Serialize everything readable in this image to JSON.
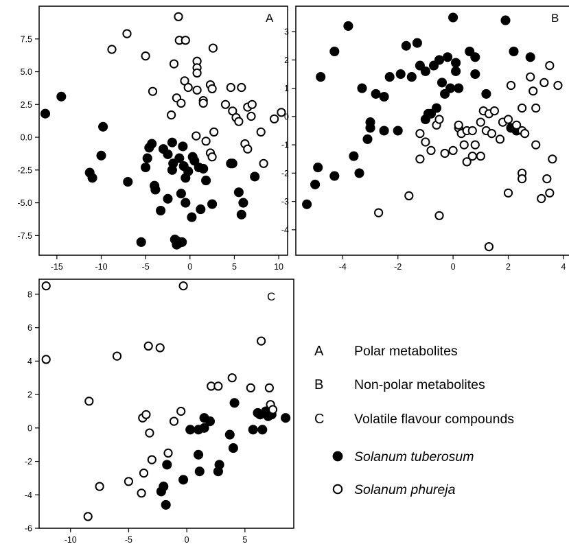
{
  "chart_data": [
    {
      "type": "scatter",
      "panel": "A",
      "xlim": [
        -17,
        11
      ],
      "ylim": [
        -9,
        10
      ],
      "xticks": [
        -15,
        -10,
        -5,
        0,
        5,
        10
      ],
      "yticks": [
        -7.5,
        -5.0,
        -2.5,
        0.0,
        2.5,
        5.0,
        7.5
      ],
      "grid": false,
      "series": [
        {
          "name": "Solanum tuberosum",
          "marker": "filled",
          "points": [
            [
              -16.3,
              1.8
            ],
            [
              -14.5,
              3.1
            ],
            [
              -11.3,
              -2.7
            ],
            [
              -11,
              -3.1
            ],
            [
              -10,
              -1.4
            ],
            [
              -9.8,
              0.8
            ],
            [
              -7,
              -3.4
            ],
            [
              -5,
              -2.3
            ],
            [
              -4.8,
              -1.6
            ],
            [
              -4.6,
              -0.8
            ],
            [
              -4.3,
              -0.5
            ],
            [
              -4,
              -3.7
            ],
            [
              -3.9,
              -4
            ],
            [
              -3.3,
              -5.6
            ],
            [
              -3,
              -0.9
            ],
            [
              -2.5,
              -4.7
            ],
            [
              -2.5,
              -1.3
            ],
            [
              -2,
              -0.4
            ],
            [
              -1.9,
              -2
            ],
            [
              -1.7,
              -7.8
            ],
            [
              -1.5,
              -7.9
            ],
            [
              -1.2,
              -1.6
            ],
            [
              -1,
              -4.3
            ],
            [
              -0.8,
              -0.7
            ],
            [
              -0.7,
              -2.2
            ],
            [
              -0.5,
              -3.1
            ],
            [
              -0.2,
              -2.6
            ],
            [
              0.2,
              -6.1
            ],
            [
              0.5,
              -1.8
            ],
            [
              1,
              -2.3
            ],
            [
              1.2,
              -5.5
            ],
            [
              1.5,
              -2.4
            ],
            [
              1.8,
              -3.3
            ],
            [
              2.5,
              -5.1
            ],
            [
              4.6,
              -2
            ],
            [
              4.8,
              -2
            ],
            [
              5.5,
              -4.2
            ],
            [
              5.8,
              -5.9
            ],
            [
              6,
              -5
            ],
            [
              7.3,
              -3
            ],
            [
              -5.5,
              -8
            ],
            [
              -1.5,
              -8.2
            ],
            [
              -1.3,
              -8.1
            ],
            [
              -0.9,
              -8
            ],
            [
              -2,
              -2.5
            ],
            [
              -0.5,
              -5
            ],
            [
              0.3,
              -1.5
            ]
          ]
        },
        {
          "name": "Solanum phureja",
          "marker": "open",
          "points": [
            [
              -1.3,
              9.2
            ],
            [
              -7.1,
              7.9
            ],
            [
              -8.8,
              6.7
            ],
            [
              -5,
              6.2
            ],
            [
              -1.2,
              7.4
            ],
            [
              -0.5,
              7.4
            ],
            [
              2.6,
              6.8
            ],
            [
              0.8,
              5.8
            ],
            [
              0.8,
              5.3
            ],
            [
              0.8,
              4.9
            ],
            [
              -1.8,
              5.6
            ],
            [
              -0.6,
              4.3
            ],
            [
              -0.2,
              3.8
            ],
            [
              0.8,
              3.6
            ],
            [
              2.3,
              4
            ],
            [
              2.5,
              3.7
            ],
            [
              4.6,
              3.8
            ],
            [
              5.8,
              3.8
            ],
            [
              4,
              2.5
            ],
            [
              4.8,
              2
            ],
            [
              5.2,
              1.5
            ],
            [
              5.5,
              1.2
            ],
            [
              6.5,
              2.3
            ],
            [
              7,
              2.5
            ],
            [
              6.9,
              1.6
            ],
            [
              8,
              0.4
            ],
            [
              9.5,
              1.4
            ],
            [
              10.3,
              1.9
            ],
            [
              -2.1,
              1.7
            ],
            [
              -1.5,
              3
            ],
            [
              -1,
              2.6
            ],
            [
              1.5,
              2.8
            ],
            [
              1.5,
              2.6
            ],
            [
              2.7,
              0.4
            ],
            [
              0.7,
              0.1
            ],
            [
              1.8,
              -0.3
            ],
            [
              2.3,
              -1.2
            ],
            [
              2.5,
              -1.5
            ],
            [
              6.2,
              -0.5
            ],
            [
              6.5,
              -0.9
            ],
            [
              8.3,
              -2
            ],
            [
              -4.2,
              3.5
            ]
          ]
        }
      ]
    },
    {
      "type": "scatter",
      "panel": "B",
      "xlim": [
        -5.7,
        4.5
      ],
      "ylim": [
        -4.9,
        3.9
      ],
      "xticks": [
        -4,
        -2,
        0,
        2,
        4
      ],
      "yticks": [
        -4,
        -3,
        -2,
        -1,
        0,
        1,
        2,
        3
      ],
      "grid": false,
      "series": [
        {
          "name": "Solanum tuberosum",
          "marker": "filled",
          "points": [
            [
              -5.3,
              -3.1
            ],
            [
              -5,
              -2.4
            ],
            [
              -4.9,
              -1.8
            ],
            [
              -4.8,
              1.4
            ],
            [
              -4.3,
              -2.1
            ],
            [
              -4.3,
              2.3
            ],
            [
              -3.8,
              3.2
            ],
            [
              -3.6,
              -1.4
            ],
            [
              -3.4,
              -2
            ],
            [
              -3.3,
              1
            ],
            [
              -3.1,
              -0.8
            ],
            [
              -3,
              -0.2
            ],
            [
              -3,
              -0.4
            ],
            [
              -2.8,
              0.8
            ],
            [
              -2.5,
              -0.5
            ],
            [
              -2.5,
              0.7
            ],
            [
              -2.3,
              1.4
            ],
            [
              -2,
              -0.5
            ],
            [
              -1.9,
              1.5
            ],
            [
              -1.7,
              2.5
            ],
            [
              -1.5,
              1.4
            ],
            [
              -1.3,
              2.6
            ],
            [
              -1.2,
              1.8
            ],
            [
              -1,
              1.6
            ],
            [
              -1,
              -0.1
            ],
            [
              -0.9,
              0.1
            ],
            [
              -0.7,
              1.8
            ],
            [
              -0.6,
              0.3
            ],
            [
              -0.5,
              2
            ],
            [
              -0.3,
              0.8
            ],
            [
              -0.2,
              2.1
            ],
            [
              -0.1,
              1
            ],
            [
              0.1,
              1.6
            ],
            [
              0.1,
              1.9
            ],
            [
              0,
              3.5
            ],
            [
              0.6,
              2.3
            ],
            [
              0.8,
              2.1
            ],
            [
              0.8,
              1.5
            ],
            [
              1.2,
              0.8
            ],
            [
              1.9,
              3.4
            ],
            [
              2.1,
              -0.4
            ],
            [
              2.2,
              2.3
            ],
            [
              2.3,
              -0.5
            ],
            [
              2.8,
              2.1
            ],
            [
              -0.8,
              0.1
            ],
            [
              0.2,
              1
            ],
            [
              -0.4,
              1.2
            ]
          ]
        },
        {
          "name": "Solanum phureja",
          "marker": "open",
          "points": [
            [
              1.3,
              -4.6
            ],
            [
              -2.7,
              -3.4
            ],
            [
              -0.5,
              -3.5
            ],
            [
              -1.6,
              -2.8
            ],
            [
              -1.2,
              -1.5
            ],
            [
              -0.3,
              -1.3
            ],
            [
              -0.8,
              -1.2
            ],
            [
              -1,
              -0.9
            ],
            [
              -1.2,
              -0.6
            ],
            [
              -0.6,
              -0.3
            ],
            [
              -0.5,
              -0.1
            ],
            [
              0.2,
              -0.4
            ],
            [
              0.3,
              -0.6
            ],
            [
              0.4,
              -1
            ],
            [
              0.5,
              -0.5
            ],
            [
              0.7,
              -0.5
            ],
            [
              0.8,
              -1
            ],
            [
              0.7,
              -1.4
            ],
            [
              1,
              -1.4
            ],
            [
              0.5,
              -1.6
            ],
            [
              1,
              -0.2
            ],
            [
              1.1,
              0.2
            ],
            [
              1.2,
              -0.5
            ],
            [
              1.3,
              0.1
            ],
            [
              1.5,
              0.2
            ],
            [
              1.7,
              -0.8
            ],
            [
              1.8,
              -0.2
            ],
            [
              2,
              -0.1
            ],
            [
              2,
              -2.7
            ],
            [
              2.1,
              1.1
            ],
            [
              2.3,
              -0.3
            ],
            [
              2.5,
              0.3
            ],
            [
              2.5,
              -0.5
            ],
            [
              2.6,
              -0.6
            ],
            [
              2.5,
              -2
            ],
            [
              2.5,
              -2.2
            ],
            [
              2.8,
              1.4
            ],
            [
              2.9,
              0.9
            ],
            [
              3,
              0.3
            ],
            [
              3,
              -1
            ],
            [
              3.2,
              -2.9
            ],
            [
              3.3,
              1.2
            ],
            [
              3.4,
              -2.2
            ],
            [
              3.5,
              1.8
            ],
            [
              3.5,
              -2.7
            ],
            [
              3.6,
              -1.5
            ],
            [
              3.8,
              1.1
            ],
            [
              4.4,
              0.3
            ],
            [
              0.2,
              -0.3
            ],
            [
              1.4,
              -0.6
            ],
            [
              0,
              -1.2
            ]
          ]
        }
      ]
    },
    {
      "type": "scatter",
      "panel": "C",
      "xlim": [
        -12.7,
        9.2
      ],
      "ylim": [
        -6,
        8.9
      ],
      "xticks": [
        -10,
        -5,
        0,
        5
      ],
      "yticks": [
        -6,
        -4,
        -2,
        0,
        2,
        4,
        6,
        8
      ],
      "grid": false,
      "series": [
        {
          "name": "Solanum tuberosum",
          "marker": "filled",
          "points": [
            [
              -2.2,
              -3.8
            ],
            [
              -2,
              -3.5
            ],
            [
              -1.8,
              -4.6
            ],
            [
              -1.7,
              -2.2
            ],
            [
              -0.3,
              -3.1
            ],
            [
              0.3,
              -0.1
            ],
            [
              1,
              -1.6
            ],
            [
              1,
              -0.1
            ],
            [
              1.1,
              -2.6
            ],
            [
              1.5,
              0
            ],
            [
              1.5,
              0.6
            ],
            [
              2,
              0.4
            ],
            [
              2.7,
              -2.6
            ],
            [
              2.8,
              -2.2
            ],
            [
              3.7,
              -0.4
            ],
            [
              4.1,
              1.5
            ],
            [
              4,
              -1.2
            ],
            [
              5.7,
              -0.1
            ],
            [
              6.1,
              0.9
            ],
            [
              6.3,
              0.8
            ],
            [
              6.5,
              -0.1
            ],
            [
              6.8,
              1
            ],
            [
              7,
              0.7
            ],
            [
              7.3,
              0.8
            ],
            [
              8.5,
              0.6
            ]
          ]
        },
        {
          "name": "Solanum phureja",
          "marker": "open",
          "points": [
            [
              -12.1,
              8.5
            ],
            [
              -12.1,
              4.1
            ],
            [
              -8.4,
              1.6
            ],
            [
              -8.5,
              -5.3
            ],
            [
              -7.5,
              -3.5
            ],
            [
              -6,
              4.3
            ],
            [
              -5,
              -3.2
            ],
            [
              -3.9,
              -3.9
            ],
            [
              -3.8,
              0.6
            ],
            [
              -3.5,
              0.8
            ],
            [
              -3.3,
              4.9
            ],
            [
              -3.2,
              -0.3
            ],
            [
              -3,
              -1.9
            ],
            [
              -3.7,
              -2.7
            ],
            [
              -2.3,
              4.8
            ],
            [
              -1.6,
              -1.5
            ],
            [
              -1.1,
              0.4
            ],
            [
              -0.5,
              1
            ],
            [
              -0.3,
              8.5
            ],
            [
              2.1,
              2.5
            ],
            [
              2.7,
              2.5
            ],
            [
              3.9,
              3
            ],
            [
              5.5,
              2.4
            ],
            [
              6.4,
              5.2
            ],
            [
              7.1,
              2.4
            ],
            [
              7.2,
              1.4
            ],
            [
              7.4,
              1.1
            ]
          ]
        }
      ]
    }
  ],
  "panels": {
    "A": {
      "letter": "A"
    },
    "B": {
      "letter": "B"
    },
    "C": {
      "letter": "C"
    }
  },
  "legend": {
    "items": [
      {
        "letter": "A",
        "label": "Polar metabolites"
      },
      {
        "letter": "B",
        "label": "Non-polar metabolites"
      },
      {
        "letter": "C",
        "label": "Volatile flavour compounds"
      }
    ],
    "species": [
      {
        "label": "Solanum tuberosum",
        "marker": "filled"
      },
      {
        "label": "Solanum phureja",
        "marker": "open"
      }
    ]
  },
  "colors": {
    "axis": "#000000",
    "marker_fill": "#000000",
    "open_fill": "#ffffff"
  }
}
